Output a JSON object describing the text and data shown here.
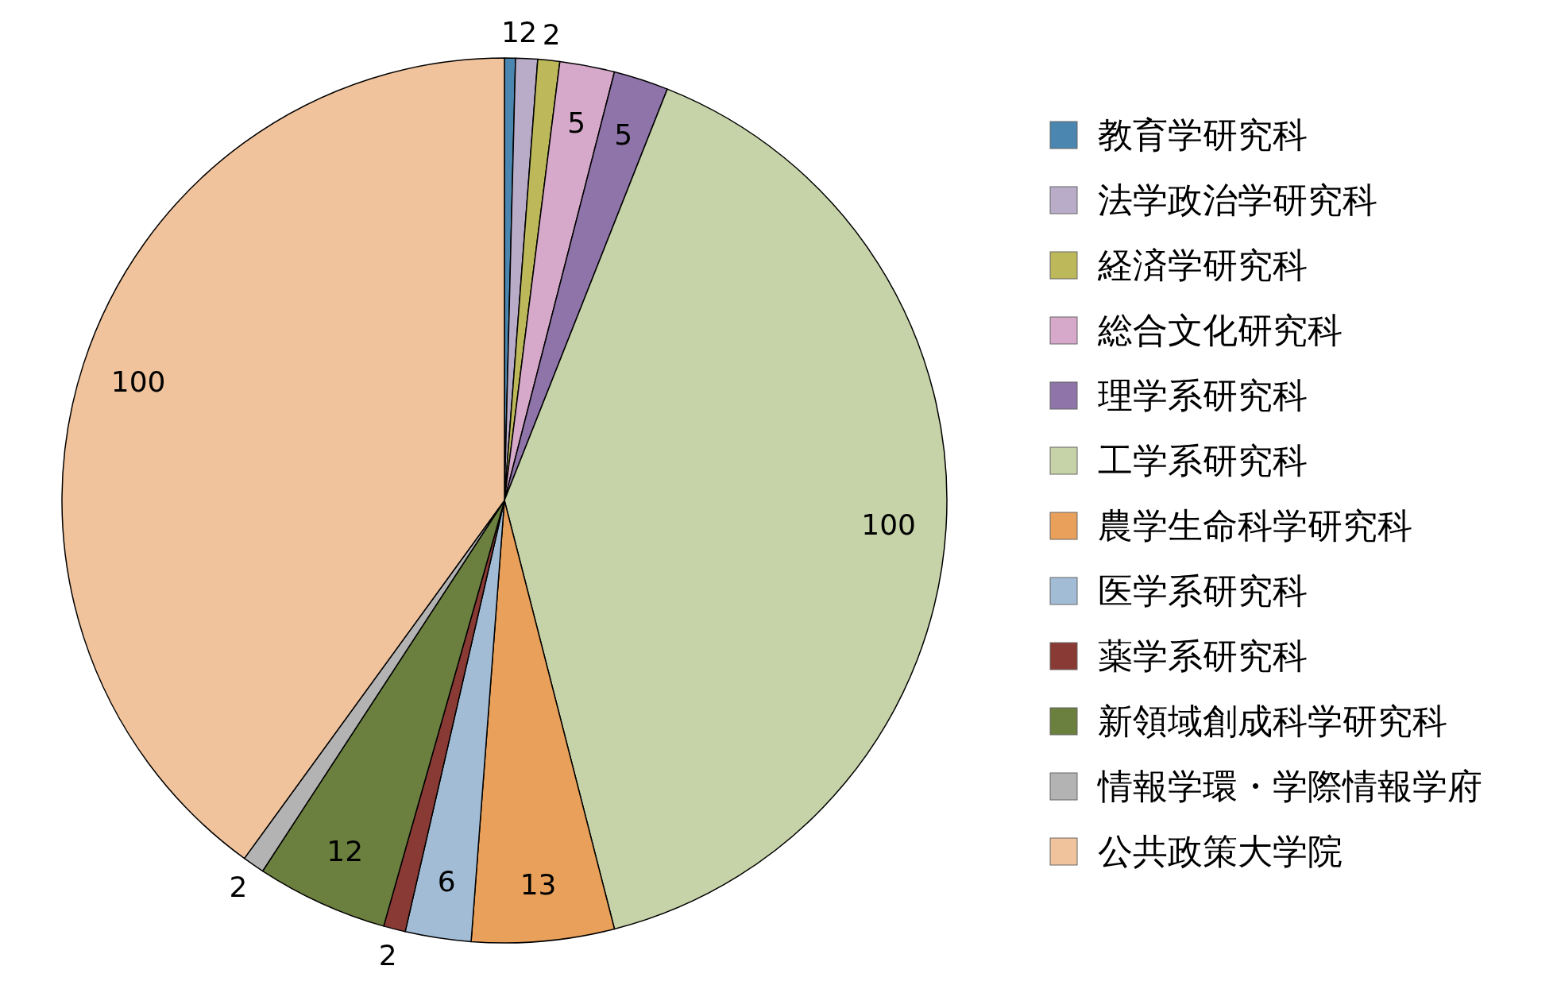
{
  "chart_data": {
    "type": "pie",
    "categories": [
      "教育学研究科",
      "法学政治学研究科",
      "経済学研究科",
      "総合文化研究科",
      "理学系研究科",
      "工学系研究科",
      "農学生命科学研究科",
      "医学系研究科",
      "薬学系研究科",
      "新領域創成科学研究科",
      "情報学環・学際情報学府",
      "公共政策大学院"
    ],
    "values": [
      1,
      2,
      2,
      5,
      5,
      100,
      13,
      6,
      2,
      12,
      2,
      100
    ],
    "colors": [
      "#4a86b0",
      "#b9acc9",
      "#bdb85a",
      "#d6a8c9",
      "#8e74a8",
      "#c6d3a8",
      "#e8a05a",
      "#a2bcd6",
      "#8a3a34",
      "#6b7f3e",
      "#b3b3b3",
      "#f0c39c"
    ],
    "data_labels": true,
    "legend": "right"
  }
}
